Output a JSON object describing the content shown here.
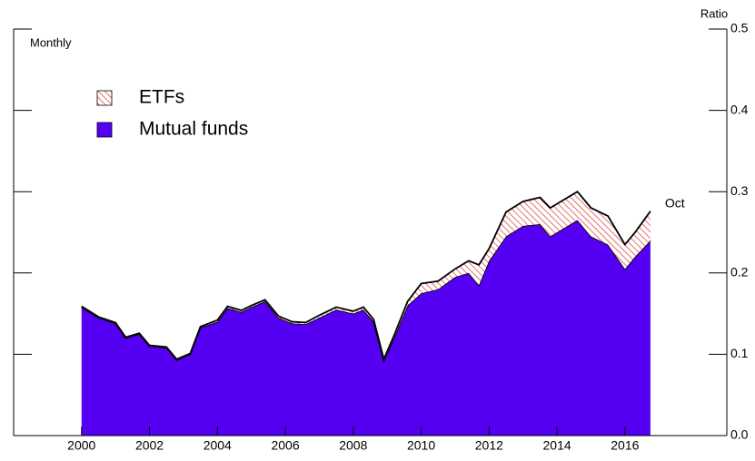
{
  "chart_data": {
    "type": "stacked_area",
    "y_axis_label": "Ratio",
    "frequency_label": "Monthly",
    "annotation": "Oct",
    "xlim": [
      1998,
      2019
    ],
    "xticks": [
      2000,
      2002,
      2004,
      2006,
      2008,
      2010,
      2012,
      2014,
      2016
    ],
    "ylim": [
      0,
      0.5
    ],
    "yticks": [
      {
        "value": 0,
        "label": "0.0"
      },
      0.1,
      0.2,
      0.3,
      0.4,
      0.5
    ],
    "legend": "upper left",
    "x": [
      2000.0,
      2000.5,
      2001.0,
      2001.3,
      2001.7,
      2002.0,
      2002.5,
      2002.8,
      2003.2,
      2003.5,
      2004.0,
      2004.3,
      2004.7,
      2005.0,
      2005.4,
      2005.8,
      2006.2,
      2006.6,
      2007.0,
      2007.5,
      2008.0,
      2008.3,
      2008.6,
      2008.9,
      2009.2,
      2009.6,
      2010.0,
      2010.5,
      2011.0,
      2011.4,
      2011.7,
      2012.0,
      2012.5,
      2013.0,
      2013.5,
      2013.8,
      2014.2,
      2014.6,
      2015.0,
      2015.5,
      2016.0,
      2016.3,
      2016.75
    ],
    "series": [
      {
        "name": "Mutual funds",
        "color": "#5500f2",
        "values": [
          0.158,
          0.145,
          0.138,
          0.12,
          0.125,
          0.11,
          0.108,
          0.093,
          0.1,
          0.133,
          0.14,
          0.157,
          0.152,
          0.158,
          0.165,
          0.145,
          0.138,
          0.137,
          0.145,
          0.155,
          0.15,
          0.155,
          0.14,
          0.092,
          0.12,
          0.16,
          0.175,
          0.18,
          0.195,
          0.2,
          0.185,
          0.215,
          0.245,
          0.258,
          0.26,
          0.245,
          0.255,
          0.265,
          0.245,
          0.235,
          0.205,
          0.22,
          0.24
        ]
      },
      {
        "name": "ETFs",
        "color": "#e0504a",
        "values": [
          0.001,
          0.001,
          0.001,
          0.001,
          0.001,
          0.001,
          0.001,
          0.001,
          0.001,
          0.001,
          0.002,
          0.002,
          0.002,
          0.002,
          0.002,
          0.002,
          0.002,
          0.002,
          0.003,
          0.003,
          0.003,
          0.003,
          0.003,
          0.002,
          0.003,
          0.005,
          0.012,
          0.01,
          0.01,
          0.015,
          0.025,
          0.015,
          0.03,
          0.03,
          0.033,
          0.035,
          0.035,
          0.035,
          0.035,
          0.035,
          0.03,
          0.03,
          0.036
        ]
      }
    ]
  }
}
